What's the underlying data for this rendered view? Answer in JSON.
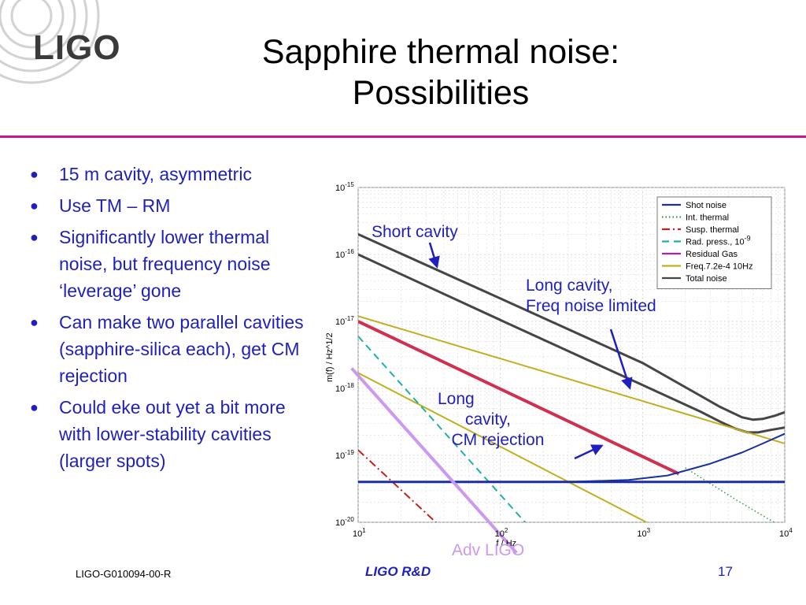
{
  "header": {
    "logo_text": "LIGO",
    "title_lines": [
      "Sapphire thermal noise:",
      "Possibilities"
    ]
  },
  "bullets": [
    "15 m cavity, asymmetric",
    "Use TM – RM",
    "Significantly lower thermal noise, but frequency noise ‘leverage’ gone",
    "Can make two parallel cavities (sapphire-silica each), get CM rejection",
    "Could eke out yet a bit more with lower-stability cavities (larger spots)"
  ],
  "annotations": {
    "short_cavity": "Short cavity",
    "long_freq": "Long cavity,\nFreq noise limited",
    "long_cm": "Long\n      cavity,\n   CM rejection",
    "adv_ligo": "Adv LIGO"
  },
  "footer": {
    "doc_id": "LIGO-G010094-00-R",
    "center": "LIGO R&D",
    "page": "17"
  },
  "colors": {
    "accent_rule": "#c2188a",
    "text_blue": "#1f1fbf",
    "adv_ligo": "#cc99ee"
  },
  "chart_data": {
    "type": "line",
    "xscale": "log",
    "yscale": "log",
    "xlim": [
      10,
      10000
    ],
    "ylim": [
      1e-20,
      1e-15
    ],
    "xlabel": "f / Hz",
    "ylabel": "m(f) / Hz^1/2",
    "x_ticks": [
      {
        "value": 10,
        "base": "10",
        "exp": "1"
      },
      {
        "value": 100,
        "base": "10",
        "exp": "2"
      },
      {
        "value": 1000,
        "base": "10",
        "exp": "3"
      },
      {
        "value": 10000,
        "base": "10",
        "exp": "4"
      }
    ],
    "y_ticks": [
      {
        "value": 1e-15,
        "base": "10",
        "exp": "-15"
      },
      {
        "value": 1e-16,
        "base": "10",
        "exp": "-16"
      },
      {
        "value": 1e-17,
        "base": "10",
        "exp": "-17"
      },
      {
        "value": 1e-18,
        "base": "10",
        "exp": "-18"
      },
      {
        "value": 1e-19,
        "base": "10",
        "exp": "-19"
      },
      {
        "value": 1e-20,
        "base": "10",
        "exp": "-20"
      }
    ],
    "legend_position": "top-right",
    "legend": [
      {
        "name": "Shot noise",
        "color": "#1a2fa0",
        "dash": "solid"
      },
      {
        "name": "Int. thermal",
        "color": "#2a9a4a",
        "dash": "dotted"
      },
      {
        "name": "Susp. thermal",
        "color": "#c42020",
        "dash": "dashdot"
      },
      {
        "name": "Rad. press., 10",
        "sup": "-9",
        "color": "#20b0a8",
        "dash": "dashed"
      },
      {
        "name": "Residual Gas",
        "color": "#b020b0",
        "dash": "solid"
      },
      {
        "name": "Freq.7.2e-4 10Hz",
        "color": "#c0b020",
        "dash": "solid"
      },
      {
        "name": "Total noise",
        "color": "#454545",
        "dash": "solid"
      }
    ],
    "series": [
      {
        "name": "Short cavity total",
        "color": "#454545",
        "width": 3,
        "dash": "solid",
        "points": [
          [
            10,
            2e-16
          ],
          [
            100,
            2.2e-17
          ],
          [
            1000,
            2.4e-18
          ],
          [
            3500,
            5.3e-19
          ],
          [
            5000,
            3.7e-19
          ],
          [
            6000,
            3.4e-19
          ],
          [
            7000,
            3.5e-19
          ],
          [
            8500,
            3.9e-19
          ],
          [
            10000,
            4.4e-19
          ]
        ]
      },
      {
        "name": "Long cavity total",
        "color": "#454545",
        "width": 3,
        "dash": "solid",
        "points": [
          [
            10,
            1e-16
          ],
          [
            100,
            1.05e-17
          ],
          [
            1000,
            1.12e-18
          ],
          [
            2500,
            4.6e-19
          ],
          [
            3500,
            3.2e-19
          ],
          [
            4500,
            2.5e-19
          ],
          [
            5500,
            2.2e-19
          ],
          [
            6500,
            2.2e-19
          ],
          [
            8000,
            2.4e-19
          ],
          [
            10000,
            2.6e-19
          ]
        ]
      },
      {
        "name": "CM rejection",
        "color": "#d03050",
        "width": 4,
        "dash": "solid",
        "points": [
          [
            10,
            1e-17
          ],
          [
            1800,
            5.3e-20
          ]
        ]
      },
      {
        "name": "Freq noise",
        "color": "#c0b020",
        "width": 2,
        "dash": "solid",
        "points": [
          [
            10,
            1.7e-18
          ],
          [
            2000,
            5e-21
          ]
        ]
      },
      {
        "name": "Freq noise 2",
        "color": "#c0b020",
        "width": 2,
        "dash": "solid",
        "points": [
          [
            10,
            1.2e-17
          ],
          [
            10000,
            1.5e-19
          ]
        ]
      },
      {
        "name": "Rad. press.",
        "color": "#20b0a8",
        "width": 2,
        "dash": "dashed",
        "points": [
          [
            10,
            6e-18
          ],
          [
            200,
            5e-21
          ]
        ]
      },
      {
        "name": "Susp. thermal",
        "color": "#c42020",
        "width": 2,
        "dash": "dashdot",
        "points": [
          [
            10,
            1.2e-19
          ],
          [
            50,
            5e-21
          ]
        ]
      },
      {
        "name": "Int. thermal",
        "color": "#2a9a4a",
        "width": 1.5,
        "dash": "dotted",
        "points": [
          [
            2000,
            6.5e-20
          ],
          [
            4500,
            2.2e-20
          ],
          [
            10000,
            8e-21
          ]
        ]
      },
      {
        "name": "Shot noise",
        "color": "#1a2fa0",
        "width": 3,
        "dash": "solid",
        "points": [
          [
            10,
            4e-20
          ],
          [
            10000,
            4e-20
          ]
        ]
      },
      {
        "name": "Shot noise rise",
        "color": "#1a2fa0",
        "width": 2,
        "dash": "solid",
        "points": [
          [
            300,
            4e-20
          ],
          [
            800,
            4.3e-20
          ],
          [
            1500,
            5e-20
          ],
          [
            3000,
            7.5e-20
          ],
          [
            5000,
            1.1e-19
          ],
          [
            7000,
            1.5e-19
          ],
          [
            10000,
            2.1e-19
          ]
        ]
      },
      {
        "name": "Adv LIGO",
        "color": "#cc99ee",
        "width": 4,
        "dash": "solid",
        "points": [
          [
            9,
            2e-18
          ],
          [
            130,
            3.5e-21
          ]
        ]
      }
    ]
  }
}
